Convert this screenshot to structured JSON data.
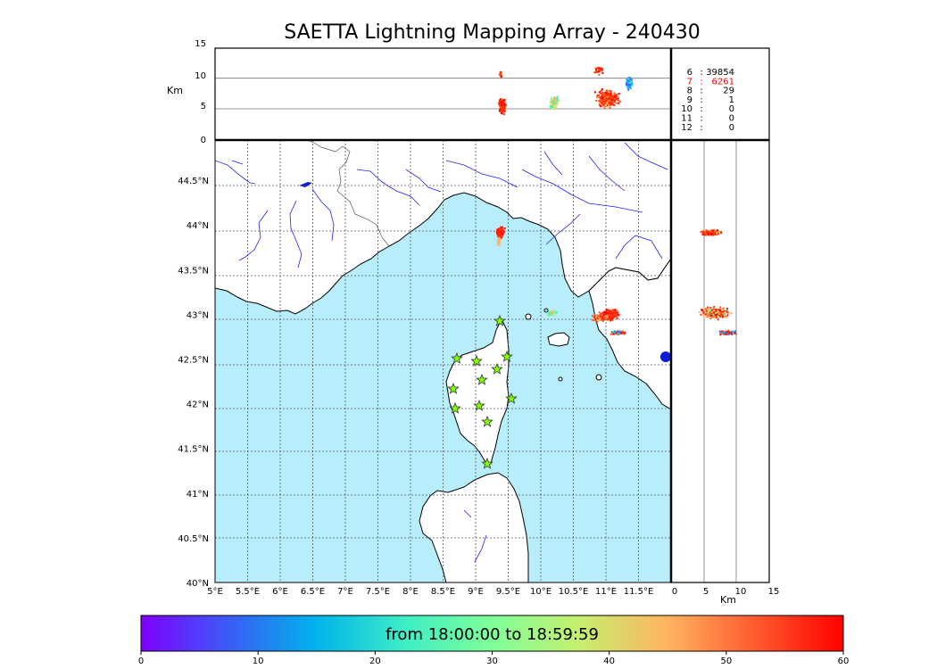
{
  "title": "SAETTA Lightning Mapping Array - 240430",
  "colorbar": {
    "range_label": "from 18:00:00 to 18:59:59",
    "ticks": [
      "0",
      "10",
      "20",
      "30",
      "40",
      "50",
      "60"
    ],
    "colors": [
      "#7f00ff",
      "#3a5cf7",
      "#00b4eb",
      "#3deec6",
      "#80ff9a",
      "#c6ef6e",
      "#ffb360",
      "#ff5a2e",
      "#ff0000"
    ]
  },
  "map": {
    "lon_ticks": [
      "5°E",
      "5.5°E",
      "6°E",
      "6.5°E",
      "7°E",
      "7.5°E",
      "8°E",
      "8.5°E",
      "9°E",
      "9.5°E",
      "10°E",
      "10.5°E",
      "11°E",
      "11.5°E"
    ],
    "lat_ticks": [
      "40°N",
      "40.5°N",
      "41°N",
      "41.5°N",
      "42°N",
      "42.5°N",
      "43°N",
      "43.5°N",
      "44°N",
      "44.5°N"
    ],
    "lon_range": [
      5,
      12
    ],
    "lat_range": [
      40,
      44.95
    ],
    "sea_color": "#b8eefb",
    "land_color": "#ffffff",
    "river_color": "#2222ee",
    "station_color": "#7fff00",
    "station_count": 14
  },
  "altitude_panel": {
    "axis_label": "Km",
    "y_ticks": [
      "0",
      "5",
      "10",
      "15"
    ],
    "gridlines_km": [
      5,
      10
    ]
  },
  "side_panel": {
    "axis_label": "Km",
    "x_ticks": [
      "0",
      "5",
      "10",
      "15"
    ],
    "gridlines_km": [
      5,
      10
    ]
  },
  "station_stats": [
    {
      "n": "6",
      "sep": ":",
      "count": "39854",
      "color": "#000000"
    },
    {
      "n": "7",
      "sep": ":",
      "count": "6261",
      "color": "#ff0000"
    },
    {
      "n": "8",
      "sep": ":",
      "count": "29",
      "color": "#000000"
    },
    {
      "n": "9",
      "sep": ":",
      "count": "1",
      "color": "#000000"
    },
    {
      "n": "10",
      "sep": ":",
      "count": "0",
      "color": "#000000"
    },
    {
      "n": "11",
      "sep": ":",
      "count": "0",
      "color": "#000000"
    },
    {
      "n": "12",
      "sep": ":",
      "count": "0",
      "color": "#000000"
    }
  ]
}
